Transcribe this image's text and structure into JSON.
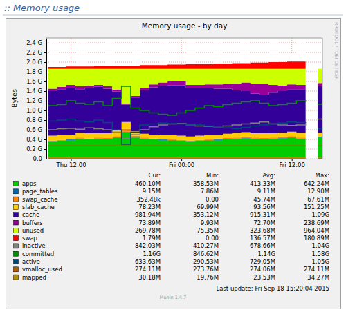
{
  "header": ":: Memory usage",
  "chart_data": {
    "type": "area",
    "title": "Memory usage - by day",
    "y_label": "Bytes",
    "watermark": "RRDTOOL / TOBI OETIKER",
    "footer": "Last update: Fri Sep 18 15:20:04 2015",
    "version": "Munin 1.4.7",
    "stacked": true,
    "grid": true,
    "xlim": [
      9.33,
      39.33
    ],
    "xticks": [
      {
        "value": 12,
        "label": "Thu 12:00"
      },
      {
        "value": 24,
        "label": "Fri 00:00"
      },
      {
        "value": 36,
        "label": "Fri 12:00"
      }
    ],
    "ylim": [
      0,
      2.5
    ],
    "yticks": [
      {
        "value": 0,
        "label": "0.0"
      },
      {
        "value": 0.2,
        "label": "0.2 G"
      },
      {
        "value": 0.4,
        "label": "0.4 G"
      },
      {
        "value": 0.6,
        "label": "0.6 G"
      },
      {
        "value": 0.8,
        "label": "0.8 G"
      },
      {
        "value": 1.0,
        "label": "1.0 G"
      },
      {
        "value": 1.2,
        "label": "1.2 G"
      },
      {
        "value": 1.4,
        "label": "1.4 G"
      },
      {
        "value": 1.6,
        "label": "1.6 G"
      },
      {
        "value": 1.8,
        "label": "1.8 G"
      },
      {
        "value": 2.0,
        "label": "2.0 G"
      },
      {
        "value": 2.2,
        "label": "2.2 G"
      },
      {
        "value": 2.4,
        "label": "2.4 G"
      }
    ],
    "x": [
      9.5,
      10.5,
      11.5,
      12.5,
      13.5,
      14.5,
      15.5,
      16.5,
      17.5,
      18.5,
      19.5,
      20.5,
      21.5,
      22.5,
      23.5,
      24.5,
      25.5,
      26.5,
      27.5,
      28.5,
      29.5,
      30.5,
      31.5,
      32.5,
      33.5,
      34.5,
      35.5,
      36.5,
      37.5,
      38.3,
      38.8,
      39.3
    ],
    "series": [
      {
        "name": "apps",
        "color": "#00cc00",
        "type": "area",
        "values": [
          0.36,
          0.37,
          0.39,
          0.41,
          0.4,
          0.41,
          0.4,
          0.43,
          0.55,
          0.44,
          0.41,
          0.4,
          0.39,
          0.38,
          0.37,
          0.36,
          0.37,
          0.38,
          0.39,
          0.4,
          0.41,
          0.42,
          0.41,
          0.4,
          0.41,
          0.42,
          0.43,
          0.41,
          0.4,
          null,
          0.45,
          0.45
        ]
      },
      {
        "name": "page_tables",
        "color": "#0066b3",
        "type": "area",
        "values": [
          0.009,
          0.009,
          0.009,
          0.009,
          0.009,
          0.009,
          0.009,
          0.009,
          0.009,
          0.009,
          0.009,
          0.009,
          0.009,
          0.009,
          0.009,
          0.009,
          0.009,
          0.009,
          0.009,
          0.009,
          0.009,
          0.009,
          0.009,
          0.009,
          0.009,
          0.009,
          0.009,
          0.009,
          0.009,
          null,
          0.009,
          0.009
        ]
      },
      {
        "name": "swap_cache",
        "color": "#ff8000",
        "type": "area",
        "values": [
          0.01,
          0.01,
          0.01,
          0.02,
          0.01,
          0.02,
          0.02,
          0.03,
          0.06,
          0.03,
          0.02,
          0.01,
          0.01,
          0.01,
          0.01,
          0.01,
          0.01,
          0.02,
          0.02,
          0.02,
          0.02,
          0.03,
          0.02,
          0.02,
          0.02,
          0.03,
          0.03,
          0.02,
          0.02,
          null,
          0,
          0
        ]
      },
      {
        "name": "slab_cache",
        "color": "#ffcc00",
        "type": "area",
        "values": [
          0.1,
          0.1,
          0.09,
          0.1,
          0.11,
          0.09,
          0.1,
          0.12,
          0.14,
          0.09,
          0.08,
          0.08,
          0.08,
          0.09,
          0.09,
          0.08,
          0.09,
          0.09,
          0.08,
          0.09,
          0.1,
          0.09,
          0.09,
          0.1,
          0.09,
          0.08,
          0.09,
          0.1,
          0.09,
          null,
          0.08,
          0.08
        ]
      },
      {
        "name": "cache",
        "color": "#330099",
        "type": "area",
        "values": [
          0.92,
          0.95,
          0.97,
          0.9,
          0.93,
          0.96,
          0.92,
          0.8,
          0.36,
          0.7,
          0.9,
          0.98,
          1.02,
          1.03,
          1.04,
          1.0,
          0.98,
          0.96,
          0.95,
          0.93,
          0.88,
          0.85,
          0.82,
          0.8,
          0.84,
          0.86,
          0.88,
          0.9,
          0.92,
          null,
          0.96,
          0.96
        ]
      },
      {
        "name": "buffers",
        "color": "#990099",
        "type": "area",
        "values": [
          0.05,
          0.05,
          0.06,
          0.06,
          0.05,
          0.04,
          0.05,
          0.04,
          0.02,
          0.03,
          0.05,
          0.06,
          0.07,
          0.08,
          0.08,
          0.07,
          0.07,
          0.08,
          0.09,
          0.1,
          0.14,
          0.18,
          0.2,
          0.22,
          0.16,
          0.12,
          0.1,
          0.09,
          0.08,
          null,
          0.07,
          0.07
        ]
      },
      {
        "name": "unused",
        "color": "#ccff00",
        "type": "area",
        "values": [
          0.41,
          0.37,
          0.33,
          0.36,
          0.35,
          0.33,
          0.36,
          0.43,
          0.72,
          0.56,
          0.39,
          0.32,
          0.28,
          0.26,
          0.26,
          0.33,
          0.33,
          0.32,
          0.32,
          0.31,
          0.3,
          0.28,
          0.31,
          0.31,
          0.33,
          0.34,
          0.32,
          0.33,
          0.34,
          null,
          0.29,
          0.29
        ]
      },
      {
        "name": "swap",
        "color": "#ff0000",
        "type": "area",
        "values": [
          0.04,
          0.04,
          0.05,
          0.05,
          0.05,
          0.06,
          0.06,
          0.06,
          0.07,
          0.07,
          0.08,
          0.08,
          0.08,
          0.09,
          0.09,
          0.1,
          0.1,
          0.1,
          0.11,
          0.11,
          0.12,
          0.12,
          0.13,
          0.13,
          0.14,
          0.14,
          0.15,
          0.15,
          0.16,
          null,
          0.002,
          0.002
        ]
      },
      {
        "name": "inactive",
        "color": "#808080",
        "type": "line",
        "values": [
          0.6,
          0.62,
          0.63,
          0.61,
          0.64,
          0.62,
          0.6,
          0.55,
          0.42,
          0.5,
          0.6,
          0.66,
          0.7,
          0.72,
          0.73,
          0.7,
          0.68,
          0.67,
          0.66,
          0.68,
          0.7,
          0.72,
          0.74,
          0.76,
          0.72,
          0.7,
          0.69,
          0.7,
          0.72,
          null,
          0.82,
          0.82
        ]
      },
      {
        "name": "committed",
        "color": "#008f00",
        "type": "line",
        "values": [
          1.1,
          1.12,
          1.2,
          1.15,
          1.13,
          1.18,
          1.1,
          1.25,
          1.5,
          1.05,
          1.0,
          0.95,
          0.92,
          0.9,
          0.95,
          1.0,
          1.05,
          1.1,
          1.08,
          1.12,
          1.15,
          1.18,
          1.2,
          1.15,
          1.1,
          1.12,
          1.15,
          1.2,
          1.18,
          null,
          1.13,
          1.13
        ]
      },
      {
        "name": "active",
        "color": "#00487d",
        "type": "line",
        "values": [
          0.78,
          0.8,
          0.82,
          0.78,
          0.76,
          0.8,
          0.75,
          0.6,
          0.3,
          0.55,
          0.7,
          0.72,
          0.74,
          0.73,
          0.72,
          0.7,
          0.7,
          0.68,
          0.66,
          0.64,
          0.62,
          0.65,
          0.68,
          0.7,
          0.72,
          0.74,
          0.76,
          0.75,
          0.74,
          null,
          0.62,
          0.62
        ]
      },
      {
        "name": "vmalloc_used",
        "color": "#b35a00",
        "type": "line",
        "values": [
          0.268,
          0.268,
          0.268,
          0.268,
          0.268,
          0.268,
          0.268,
          0.268,
          0.268,
          0.268,
          0.268,
          0.268,
          0.268,
          0.268,
          0.268,
          0.268,
          0.268,
          0.268,
          0.268,
          0.268,
          0.268,
          0.268,
          0.268,
          0.268,
          0.268,
          0.268,
          0.268,
          0.268,
          0.268,
          null,
          0.268,
          0.268
        ]
      },
      {
        "name": "mapped",
        "color": "#b38f00",
        "type": "line",
        "values": [
          0.02,
          0.02,
          0.02,
          0.02,
          0.02,
          0.02,
          0.02,
          0.02,
          0.02,
          0.02,
          0.02,
          0.02,
          0.02,
          0.02,
          0.02,
          0.02,
          0.02,
          0.02,
          0.02,
          0.02,
          0.02,
          0.02,
          0.02,
          0.02,
          0.02,
          0.02,
          0.02,
          0.02,
          0.02,
          null,
          0.03,
          0.03
        ]
      }
    ],
    "stats": {
      "columns": [
        "Cur:",
        "Min:",
        "Avg:",
        "Max:"
      ],
      "rows": [
        [
          "460.10M",
          "358.53M",
          "413.33M",
          "642.24M"
        ],
        [
          "9.15M",
          "7.86M",
          "9.11M",
          "12.90M"
        ],
        [
          "352.48k",
          "0.00",
          "45.74M",
          "67.61M"
        ],
        [
          "78.23M",
          "69.99M",
          "93.56M",
          "151.25M"
        ],
        [
          "981.94M",
          "353.12M",
          "915.31M",
          "1.09G"
        ],
        [
          "73.89M",
          "9.93M",
          "72.70M",
          "238.69M"
        ],
        [
          "269.78M",
          "75.35M",
          "323.68M",
          "964.04M"
        ],
        [
          "1.79M",
          "0.00",
          "136.57M",
          "180.89M"
        ],
        [
          "842.03M",
          "410.27M",
          "678.66M",
          "1.04G"
        ],
        [
          "1.16G",
          "846.62M",
          "1.14G",
          "1.58G"
        ],
        [
          "633.63M",
          "290.53M",
          "729.05M",
          "1.05G"
        ],
        [
          "274.11M",
          "273.76M",
          "274.06M",
          "274.11M"
        ],
        [
          "30.18M",
          "19.76M",
          "23.53M",
          "34.27M"
        ]
      ]
    }
  }
}
